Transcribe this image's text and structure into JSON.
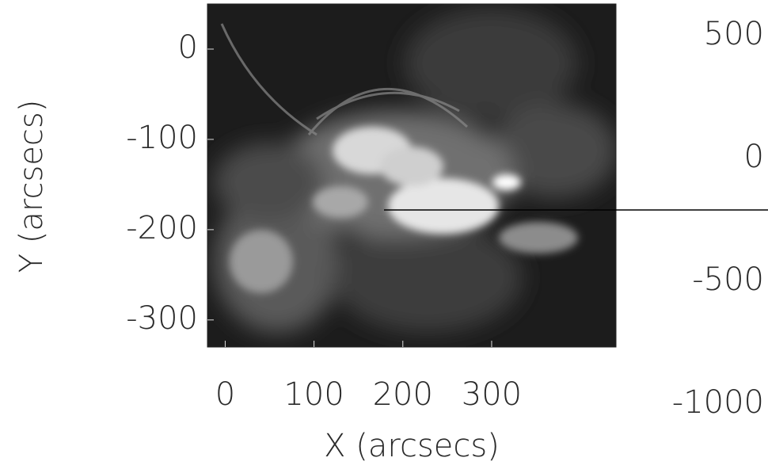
{
  "chart_data": {
    "type": "image",
    "x_label": "X (arcsecs)",
    "y_label": "Y (arcsecs)",
    "xlim": [
      -20,
      440
    ],
    "ylim": [
      -330,
      50
    ],
    "xticks": [
      0,
      100,
      200,
      300
    ],
    "yticks": [
      0,
      -100,
      -200,
      -300
    ],
    "y2lim": [
      -768,
      629
    ],
    "y2ticks": [
      500,
      0,
      -500,
      -1000
    ]
  }
}
